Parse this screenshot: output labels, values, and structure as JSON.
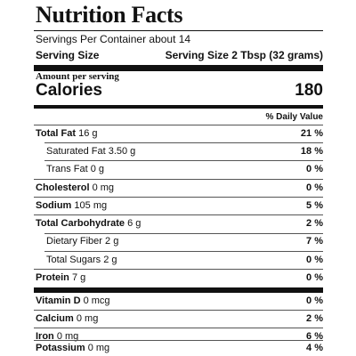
{
  "label": {
    "title": "Nutrition Facts",
    "servings_per_container": "Servings Per Container about 14",
    "serving_size_label": "Serving Size",
    "serving_size_value": "Serving Size 2 Tbsp (32 grams)",
    "amount_per_serving": "Amount per serving",
    "calories_label": "Calories",
    "calories_value": "180",
    "daily_value_header": "% Daily Value"
  },
  "nutrients": [
    {
      "name": "Total Fat",
      "amount": "16 g",
      "dv": "21 %"
    },
    {
      "name": "Saturated Fat",
      "amount": "3.50 g",
      "dv": "18 %"
    },
    {
      "name": "Trans Fat",
      "amount": "0 g",
      "dv": "0 %"
    },
    {
      "name": "Cholesterol",
      "amount": "0 mg",
      "dv": "0 %"
    },
    {
      "name": "Sodium",
      "amount": "105 mg",
      "dv": "5 %"
    },
    {
      "name": "Total Carbohydrate",
      "amount": "6 g",
      "dv": "2 %"
    },
    {
      "name": "Dietary Fiber",
      "amount": "2 g",
      "dv": "7 %"
    },
    {
      "name": "Total Sugars",
      "amount": "2 g",
      "dv": "0 %"
    },
    {
      "name": "Protein",
      "amount": "7 g",
      "dv": "0 %"
    },
    {
      "name": "Vitamin D",
      "amount": "0 mcg",
      "dv": "0 %"
    },
    {
      "name": "Calcium",
      "amount": "0 mg",
      "dv": "2 %"
    },
    {
      "name": "Iron",
      "amount": "0 mg",
      "dv": "6 %"
    },
    {
      "name": "Potassium",
      "amount": "0 mg",
      "dv": "4 %"
    }
  ]
}
